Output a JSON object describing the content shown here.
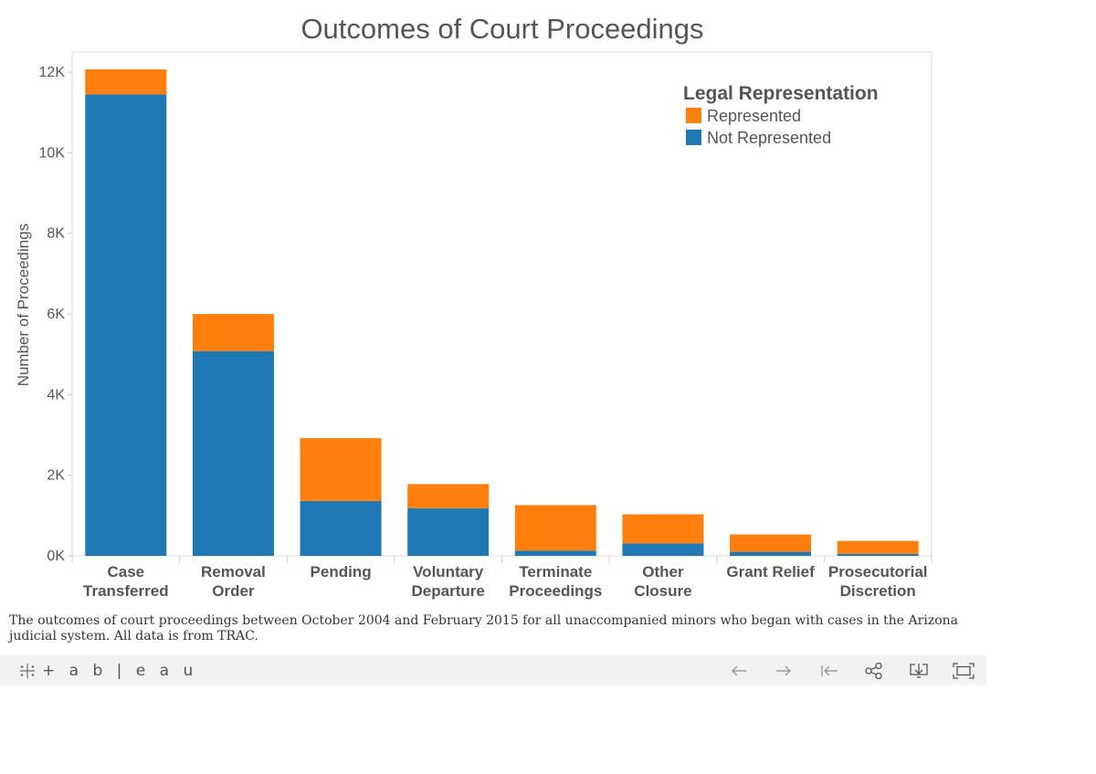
{
  "chart_data": {
    "type": "bar",
    "stacked": true,
    "title": "Outcomes of Court Proceedings",
    "ylabel": "Number of Proceedings",
    "xlabel": "",
    "ylim": [
      0,
      12500
    ],
    "yticks": [
      0,
      2000,
      4000,
      6000,
      8000,
      10000,
      12000
    ],
    "ytick_labels": [
      "0K",
      "2K",
      "4K",
      "6K",
      "8K",
      "10K",
      "12K"
    ],
    "categories": [
      [
        "Case",
        "Transferred"
      ],
      [
        "Removal",
        "Order"
      ],
      [
        "Pending"
      ],
      [
        "Voluntary",
        "Departure"
      ],
      [
        "Terminate",
        "Proceedings"
      ],
      [
        "Other",
        "Closure"
      ],
      [
        "Grant Relief"
      ],
      [
        "Prosecutorial",
        "Discretion"
      ]
    ],
    "series": [
      {
        "name": "Not Represented",
        "color": "#1f77b4",
        "values": [
          11450,
          5080,
          1360,
          1180,
          130,
          310,
          100,
          50
        ]
      },
      {
        "name": "Represented",
        "color": "#ff7f0e",
        "values": [
          620,
          920,
          1560,
          600,
          1130,
          720,
          430,
          320
        ]
      }
    ],
    "legend": {
      "title": "Legal Representation",
      "position": "top-right",
      "entries": [
        {
          "label": "Represented",
          "color": "#ff7f0e"
        },
        {
          "label": "Not Represented",
          "color": "#1f77b4"
        }
      ]
    },
    "grid": false
  },
  "caption": "The outcomes of court proceedings between October 2004 and February 2015 for all unaccompanied minors who began with cases in the Arizona judicial system.  All data is from TRAC.",
  "toolbar": {
    "brand": "+ a b | e a u",
    "buttons": [
      "undo-icon",
      "redo-icon",
      "revert-icon",
      "share-icon",
      "download-icon",
      "fullscreen-icon"
    ]
  }
}
